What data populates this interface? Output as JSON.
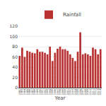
{
  "chart_data": {
    "type": "bar",
    "xlabel": "Year",
    "categories": [
      "1982",
      "1983",
      "1984",
      "1985",
      "1986",
      "1987",
      "1988",
      "1989",
      "1990",
      "1991",
      "1992",
      "1993",
      "1994",
      "1995",
      "1996",
      "1997",
      "1998",
      "1999",
      "2000",
      "2001",
      "2002",
      "2003",
      "2004",
      "2005",
      "2006",
      "2007",
      "2008",
      "2009",
      "2010",
      "2011",
      "2012",
      "2013",
      "2014"
    ],
    "series": [
      {
        "name": "Rainfall",
        "color": "#b83232",
        "values": [
          62,
          78,
          60,
          72,
          70,
          68,
          67,
          75,
          70,
          70,
          68,
          65,
          80,
          52,
          68,
          76,
          80,
          75,
          75,
          72,
          65,
          58,
          52,
          70,
          108,
          65,
          67,
          65,
          62,
          78,
          75,
          65,
          75
        ]
      }
    ],
    "ylim": [
      0,
      120
    ],
    "yticks": [
      0,
      20,
      40,
      60,
      80,
      100,
      120
    ],
    "grid": true,
    "legend": "top"
  }
}
